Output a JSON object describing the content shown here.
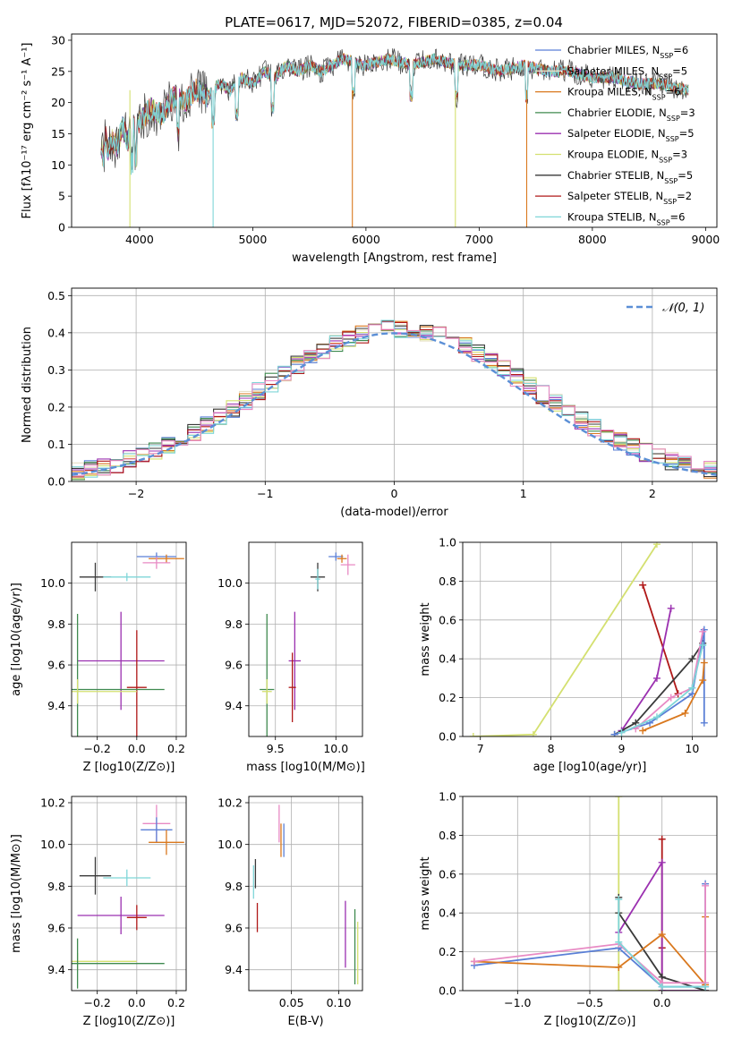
{
  "figure": {
    "title": "PLATE=0617, MJD=52072, FIBERID=0385, z=0.04"
  },
  "chart_data": [
    {
      "id": "spectrum",
      "type": "line",
      "title": "PLATE=0617, MJD=52072, FIBERID=0385, z=0.04",
      "xlabel": "wavelength [Angstrom, rest frame]",
      "ylabel": "Flux [fλ10⁻¹⁷ erg cm⁻² s⁻¹ A⁻¹]",
      "xlim": [
        3400,
        9100
      ],
      "ylim": [
        0,
        31
      ],
      "xticks": [
        4000,
        5000,
        6000,
        7000,
        8000,
        9000
      ],
      "yticks": [
        0,
        5,
        10,
        15,
        20,
        25,
        30
      ],
      "grid": false,
      "legend_position": "right",
      "data_x": [
        3660,
        3680,
        3700,
        3720,
        3750,
        3800,
        3850,
        3900,
        3950,
        4000,
        4100,
        4200,
        4300,
        4400,
        4500,
        4600,
        4700,
        4800,
        4900,
        5000,
        5100,
        5200,
        5300,
        5400,
        5500,
        5600,
        5800,
        6000,
        6200,
        6400,
        6600,
        6800,
        7000,
        7200,
        7400,
        7600,
        7800,
        8000,
        8200,
        8400,
        8600,
        8850
      ],
      "data_y": [
        13,
        11,
        15,
        12,
        14,
        13,
        16,
        14,
        16,
        17,
        19,
        18,
        21,
        20,
        22,
        21,
        23,
        22,
        24,
        23,
        25,
        24,
        26,
        25,
        26,
        25,
        27,
        26,
        27,
        26,
        27,
        26,
        26,
        25,
        26,
        25,
        25,
        24,
        24,
        23,
        23,
        22
      ],
      "series": [
        {
          "name": "Chabrier MILES, N_SSP=6",
          "legend_main": "Chabrier MILES, N",
          "legend_sub": "SSP",
          "legend_tail": "=6",
          "color": "#5a7fd6"
        },
        {
          "name": "Salpeter MILES, N_SSP=5",
          "legend_main": "Salpeter MILES, N",
          "legend_sub": "SSP",
          "legend_tail": "=5",
          "color": "#e8e0c8"
        },
        {
          "name": "Kroupa MILES, N_SSP=6",
          "legend_main": "Kroupa MILES, N",
          "legend_sub": "SSP",
          "legend_tail": "=6",
          "color": "#d9781e"
        },
        {
          "name": "Chabrier ELODIE, N_SSP=3",
          "legend_main": "Chabrier ELODIE, N",
          "legend_sub": "SSP",
          "legend_tail": "=3",
          "color": "#3f8a4f"
        },
        {
          "name": "Salpeter ELODIE, N_SSP=5",
          "legend_main": "Salpeter ELODIE, N",
          "legend_sub": "SSP",
          "legend_tail": "=5",
          "color": "#9b30b0"
        },
        {
          "name": "Kroupa ELODIE, N_SSP=3",
          "legend_main": "Kroupa ELODIE, N",
          "legend_sub": "SSP",
          "legend_tail": "=3",
          "color": "#d4e070"
        },
        {
          "name": "Chabrier STELIB, N_SSP=5",
          "legend_main": "Chabrier STELIB, N",
          "legend_sub": "SSP",
          "legend_tail": "=5",
          "color": "#3a3a3a"
        },
        {
          "name": "Salpeter STELIB, N_SSP=2",
          "legend_main": "Salpeter STELIB, N",
          "legend_sub": "SSP",
          "legend_tail": "=2",
          "color": "#b01818"
        },
        {
          "name": "Kroupa STELIB, N_SSP=6",
          "legend_main": "Kroupa STELIB, N",
          "legend_sub": "SSP",
          "legend_tail": "=6",
          "color": "#7fd6d8"
        }
      ]
    },
    {
      "id": "residuals",
      "type": "line",
      "xlabel": "(data-model)/error",
      "ylabel": "Normed distribution",
      "xlim": [
        -2.5,
        2.5
      ],
      "ylim": [
        0,
        0.52
      ],
      "xticks": [
        -2,
        -1,
        0,
        1,
        2
      ],
      "xtick_labels": [
        "−2",
        "−1",
        "0",
        "1",
        "2"
      ],
      "yticks": [
        0.0,
        0.1,
        0.2,
        0.3,
        0.4,
        0.5
      ],
      "ytick_labels": [
        "0.0",
        "0.1",
        "0.2",
        "0.3",
        "0.4",
        "0.5"
      ],
      "grid": true,
      "bin_width": 0.1,
      "gaussian_label": "𝒩(0, 1)",
      "gaussian_color": "#5b8fd6",
      "legend_position": "top-right"
    },
    {
      "id": "age_vs_Z",
      "type": "scatter",
      "xlabel": "Z [log10(Z/Z⊙)]",
      "ylabel": "age  [log10(age/yr)]",
      "xlim": [
        -0.33,
        0.25
      ],
      "ylim": [
        9.25,
        10.2
      ],
      "xticks": [
        -0.2,
        0.0,
        0.2
      ],
      "xtick_labels": [
        "−0.2",
        "0.0",
        "0.2"
      ],
      "yticks": [
        9.4,
        9.6,
        9.8,
        10.0
      ],
      "ytick_labels": [
        "9.4",
        "9.6",
        "9.8",
        "10.0"
      ],
      "points": [
        {
          "x": 0.1,
          "y": 10.13,
          "xerr": 0.1,
          "yerr": 0.02,
          "color": "#5a7fd6"
        },
        {
          "x": 0.15,
          "y": 10.12,
          "xerr": 0.09,
          "yerr": 0.02,
          "color": "#d9781e"
        },
        {
          "x": 0.1,
          "y": 10.1,
          "xerr": 0.07,
          "yerr": 0.03,
          "color": "#e88ac4"
        },
        {
          "x": -0.21,
          "y": 10.03,
          "xerr": 0.08,
          "yerr": 0.07,
          "color": "#3a3a3a"
        },
        {
          "x": -0.05,
          "y": 10.03,
          "xerr": 0.12,
          "yerr": 0.02,
          "color": "#7fd6d8"
        },
        {
          "x": -0.08,
          "y": 9.62,
          "xerr": 0.22,
          "yerr": 0.24,
          "color": "#9b30b0"
        },
        {
          "x": 0.0,
          "y": 9.49,
          "xerr": 0.05,
          "yerr": 0.28,
          "color": "#b01818"
        },
        {
          "x": -0.3,
          "y": 9.48,
          "xerr": 0.44,
          "yerr": 0.37,
          "color": "#3f8a4f"
        },
        {
          "x": -0.3,
          "y": 9.47,
          "xerr": 0.3,
          "yerr": 0.06,
          "color": "#d4e070"
        }
      ]
    },
    {
      "id": "age_vs_mass",
      "type": "scatter",
      "xlabel": "mass [log10(M/M⊙)]",
      "xlim": [
        9.28,
        10.22
      ],
      "ylim": [
        9.25,
        10.2
      ],
      "xticks": [
        9.5,
        10.0
      ],
      "xtick_labels": [
        "9.5",
        "10.0"
      ],
      "yticks": [
        9.4,
        9.6,
        9.8,
        10.0
      ],
      "ytick_labels": [
        "9.4",
        "9.6",
        "9.8",
        "10.0"
      ],
      "points": [
        {
          "x": 10.0,
          "y": 10.13,
          "xerr": 0.06,
          "yerr": 0.02,
          "color": "#5a7fd6"
        },
        {
          "x": 10.05,
          "y": 10.12,
          "xerr": 0.04,
          "yerr": 0.02,
          "color": "#d9781e"
        },
        {
          "x": 10.1,
          "y": 10.09,
          "xerr": 0.06,
          "yerr": 0.05,
          "color": "#e88ac4"
        },
        {
          "x": 9.85,
          "y": 10.03,
          "xerr": 0.06,
          "yerr": 0.07,
          "color": "#3a3a3a"
        },
        {
          "x": 9.85,
          "y": 10.02,
          "xerr": 0.02,
          "yerr": 0.05,
          "color": "#7fd6d8"
        },
        {
          "x": 9.66,
          "y": 9.62,
          "xerr": 0.05,
          "yerr": 0.24,
          "color": "#9b30b0"
        },
        {
          "x": 9.64,
          "y": 9.49,
          "xerr": 0.03,
          "yerr": 0.17,
          "color": "#b01818"
        },
        {
          "x": 9.43,
          "y": 9.48,
          "xerr": 0.06,
          "yerr": 0.37,
          "color": "#3f8a4f"
        },
        {
          "x": 9.43,
          "y": 9.47,
          "xerr": 0.04,
          "yerr": 0.06,
          "color": "#d4e070"
        }
      ]
    },
    {
      "id": "mass_vs_Z",
      "type": "scatter",
      "xlabel": "Z [log10(Z/Z⊙)]",
      "ylabel": "mass [log10(M/M⊙)]",
      "xlim": [
        -0.33,
        0.25
      ],
      "ylim": [
        9.3,
        10.23
      ],
      "xticks": [
        -0.2,
        0.0,
        0.2
      ],
      "xtick_labels": [
        "−0.2",
        "0.0",
        "0.2"
      ],
      "yticks": [
        9.4,
        9.6,
        9.8,
        10.0,
        10.2
      ],
      "ytick_labels": [
        "9.4",
        "9.6",
        "9.8",
        "10.0",
        "10.2"
      ],
      "points": [
        {
          "x": 0.1,
          "y": 10.1,
          "xerr": 0.07,
          "yerr": 0.09,
          "color": "#e88ac4"
        },
        {
          "x": 0.1,
          "y": 10.07,
          "xerr": 0.08,
          "yerr": 0.06,
          "color": "#5a7fd6"
        },
        {
          "x": 0.15,
          "y": 10.01,
          "xerr": 0.09,
          "yerr": 0.06,
          "color": "#d9781e"
        },
        {
          "x": -0.21,
          "y": 9.85,
          "xerr": 0.08,
          "yerr": 0.09,
          "color": "#3a3a3a"
        },
        {
          "x": -0.05,
          "y": 9.84,
          "xerr": 0.12,
          "yerr": 0.04,
          "color": "#7fd6d8"
        },
        {
          "x": -0.08,
          "y": 9.66,
          "xerr": 0.22,
          "yerr": 0.09,
          "color": "#9b30b0"
        },
        {
          "x": 0.0,
          "y": 9.65,
          "xerr": 0.05,
          "yerr": 0.06,
          "color": "#b01818"
        },
        {
          "x": -0.3,
          "y": 9.44,
          "xerr": 0.3,
          "yerr": 0.04,
          "color": "#d4e070"
        },
        {
          "x": -0.3,
          "y": 9.43,
          "xerr": 0.44,
          "yerr": 0.12,
          "color": "#3f8a4f"
        }
      ]
    },
    {
      "id": "mass_vs_ebv",
      "type": "scatter",
      "xlabel": "E(B-V)",
      "xlim": [
        0.005,
        0.125
      ],
      "ylim": [
        9.3,
        10.23
      ],
      "xticks": [
        0.05,
        0.1
      ],
      "xtick_labels": [
        "0.05",
        "0.10"
      ],
      "yticks": [
        9.4,
        9.6,
        9.8,
        10.0,
        10.2
      ],
      "ytick_labels": [
        "9.4",
        "9.6",
        "9.8",
        "10.0",
        "10.2"
      ],
      "points": [
        {
          "x": 0.037,
          "y": 10.1,
          "xerr": 0.0,
          "yerr": 0.09,
          "color": "#e88ac4"
        },
        {
          "x": 0.039,
          "y": 10.02,
          "xerr": 0.0,
          "yerr": 0.08,
          "color": "#d9781e"
        },
        {
          "x": 0.042,
          "y": 10.02,
          "xerr": 0.0,
          "yerr": 0.08,
          "color": "#5a7fd6"
        },
        {
          "x": 0.012,
          "y": 9.86,
          "xerr": 0.0,
          "yerr": 0.07,
          "color": "#3a3a3a"
        },
        {
          "x": 0.01,
          "y": 9.82,
          "xerr": 0.0,
          "yerr": 0.08,
          "color": "#7fd6d8"
        },
        {
          "x": 0.014,
          "y": 9.65,
          "xerr": 0.0,
          "yerr": 0.07,
          "color": "#b01818"
        },
        {
          "x": 0.107,
          "y": 9.57,
          "xerr": 0.0,
          "yerr": 0.16,
          "color": "#9b30b0"
        },
        {
          "x": 0.117,
          "y": 9.51,
          "xerr": 0.0,
          "yerr": 0.18,
          "color": "#3f8a4f"
        },
        {
          "x": 0.12,
          "y": 9.48,
          "xerr": 0.0,
          "yerr": 0.15,
          "color": "#d4e070"
        }
      ]
    },
    {
      "id": "weight_vs_age",
      "type": "line",
      "xlabel": "age  [log10(age/yr)]",
      "ylabel": "mass weight",
      "xlim": [
        6.75,
        10.35
      ],
      "ylim": [
        0,
        1
      ],
      "xticks": [
        7,
        8,
        9,
        10
      ],
      "xtick_labels": [
        "7",
        "8",
        "9",
        "10"
      ],
      "yticks": [
        0.0,
        0.2,
        0.4,
        0.6,
        0.8,
        1.0
      ],
      "ytick_labels": [
        "0.0",
        "0.2",
        "0.4",
        "0.6",
        "0.8",
        "1.0"
      ],
      "grid": true,
      "series": [
        {
          "color": "#d4e070",
          "x": [
            6.9,
            7.75,
            9.5
          ],
          "y": [
            0.0,
            0.01,
            0.99
          ]
        },
        {
          "color": "#b01818",
          "x": [
            9.3,
            9.8
          ],
          "y": [
            0.78,
            0.22
          ]
        },
        {
          "color": "#9b30b0",
          "x": [
            9.0,
            9.5,
            9.7
          ],
          "y": [
            0.03,
            0.3,
            0.66
          ]
        },
        {
          "color": "#3a3a3a",
          "x": [
            8.9,
            9.2,
            10.0,
            10.15
          ],
          "y": [
            0.01,
            0.07,
            0.4,
            0.48
          ]
        },
        {
          "color": "#5a7fd6",
          "x": [
            8.9,
            9.4,
            10.0,
            10.17,
            10.17
          ],
          "y": [
            0.01,
            0.07,
            0.22,
            0.55,
            0.07
          ]
        },
        {
          "color": "#d9781e",
          "x": [
            9.3,
            9.9,
            10.15,
            10.17
          ],
          "y": [
            0.03,
            0.12,
            0.29,
            0.38
          ]
        },
        {
          "color": "#e88ac4",
          "x": [
            9.2,
            9.7,
            10.0,
            10.15
          ],
          "y": [
            0.04,
            0.2,
            0.25,
            0.54
          ]
        },
        {
          "color": "#7fd6d8",
          "x": [
            9.0,
            9.5,
            10.0,
            10.15
          ],
          "y": [
            0.02,
            0.1,
            0.25,
            0.47
          ]
        }
      ]
    },
    {
      "id": "weight_vs_Z",
      "type": "line",
      "xlabel": "Z [log10(Z/Z⊙)]",
      "ylabel": "mass weight",
      "xlim": [
        -1.38,
        0.38
      ],
      "ylim": [
        0,
        1
      ],
      "xticks": [
        -1.0,
        -0.5,
        0.0
      ],
      "xtick_labels": [
        "−1.0",
        "−0.5",
        "0.0"
      ],
      "yticks": [
        0.0,
        0.2,
        0.4,
        0.6,
        0.8,
        1.0
      ],
      "ytick_labels": [
        "0.0",
        "0.2",
        "0.4",
        "0.6",
        "0.8",
        "1.0"
      ],
      "grid": true,
      "series": [
        {
          "color": "#d4e070",
          "x": [
            -0.3,
            -0.3,
            -0.3,
            0.3
          ],
          "y": [
            1.0,
            0.4,
            0.0,
            0.0
          ]
        },
        {
          "color": "#b01818",
          "x": [
            0.0,
            0.0,
            0.0
          ],
          "y": [
            0.22,
            0.78,
            0.0
          ]
        },
        {
          "color": "#9b30b0",
          "x": [
            -0.3,
            0.0,
            0.0,
            0.3
          ],
          "y": [
            0.3,
            0.66,
            0.0,
            0.0
          ]
        },
        {
          "color": "#3a3a3a",
          "x": [
            -0.3,
            -0.3,
            0.0,
            0.3
          ],
          "y": [
            0.48,
            0.4,
            0.07,
            0.0
          ]
        },
        {
          "color": "#5a7fd6",
          "x": [
            -1.3,
            -0.3,
            0.0,
            0.3,
            0.3
          ],
          "y": [
            0.13,
            0.22,
            0.02,
            0.02,
            0.55
          ]
        },
        {
          "color": "#d9781e",
          "x": [
            -1.3,
            -0.3,
            0.0,
            0.3,
            0.3
          ],
          "y": [
            0.15,
            0.12,
            0.29,
            0.03,
            0.38
          ]
        },
        {
          "color": "#e88ac4",
          "x": [
            -1.3,
            -0.3,
            0.0,
            0.3,
            0.3
          ],
          "y": [
            0.15,
            0.24,
            0.04,
            0.04,
            0.54
          ]
        },
        {
          "color": "#7fd6d8",
          "x": [
            -0.3,
            -0.3,
            0.0,
            0.3
          ],
          "y": [
            0.47,
            0.25,
            0.02,
            0.02
          ]
        }
      ]
    }
  ]
}
